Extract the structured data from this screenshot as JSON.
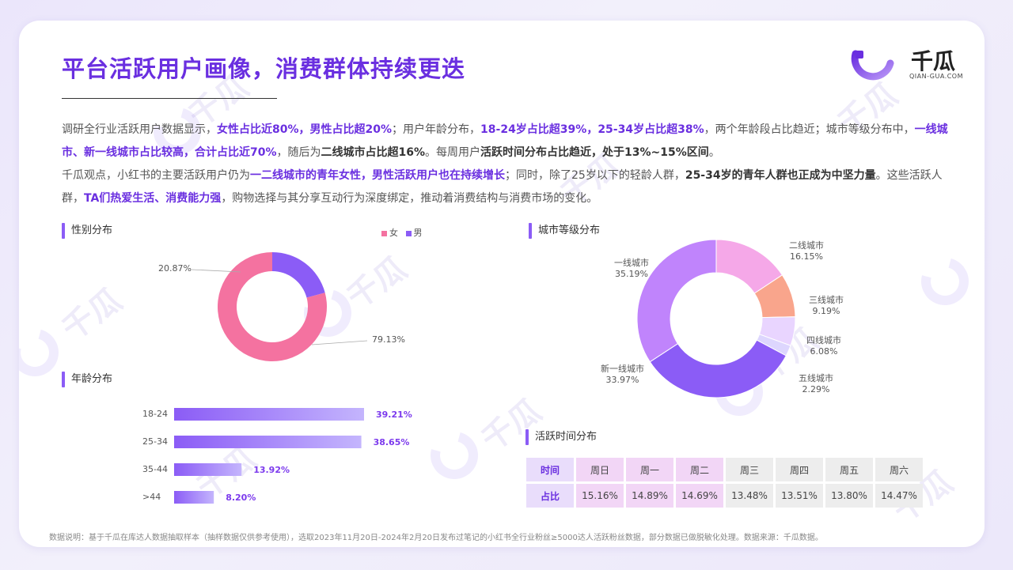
{
  "title": "平台活跃用户画像，消费群体持续更迭",
  "logo": {
    "name": "千瓜",
    "sub": "QIAN-GUA.COM"
  },
  "watermark": "千瓜",
  "paragraph": {
    "p1": [
      {
        "t": "调研全行业活跃用户数据显示，",
        "s": "n"
      },
      {
        "t": "女性占比近80%，男性占比超20%",
        "s": "b"
      },
      {
        "t": "；用户年龄分布，",
        "s": "n"
      },
      {
        "t": "18-24岁占比超39%，25-34岁占比超38%",
        "s": "b"
      },
      {
        "t": "，两个年龄段占比趋近；城市等级分布中，",
        "s": "n"
      },
      {
        "t": "一线城市、新一线城市占比较高，合计占比近70%",
        "s": "b"
      },
      {
        "t": "，随后为",
        "s": "n"
      },
      {
        "t": "二线城市占比超16%",
        "s": "h"
      },
      {
        "t": "。每周用户",
        "s": "n"
      },
      {
        "t": "活跃时间分布占比趋近，处于13%~15%区间",
        "s": "h"
      },
      {
        "t": "。",
        "s": "n"
      }
    ],
    "p2": [
      {
        "t": "千瓜观点，小红书的主要活跃用户仍为",
        "s": "n"
      },
      {
        "t": "一二线城市的青年女性，男性活跃用户也在持续增长",
        "s": "b"
      },
      {
        "t": "；同时，除了25岁以下的轻龄人群，",
        "s": "n"
      },
      {
        "t": "25-34岁的青年人群也正成为中坚力量",
        "s": "h"
      },
      {
        "t": "。这些活跃人群，",
        "s": "n"
      },
      {
        "t": "TA们热爱生活、消费能力强",
        "s": "b"
      },
      {
        "t": "，购物选择与其分享互动行为深度绑定，推动着消费结构与消费市场的变化。",
        "s": "n"
      }
    ]
  },
  "sections": {
    "gender": "性别分布",
    "age": "年龄分布",
    "city": "城市等级分布",
    "active": "活跃时间分布"
  },
  "colors": {
    "female": "#f472a0",
    "male": "#8b5cf6",
    "accent": "#6a2fe0"
  },
  "chart_data": [
    {
      "type": "pie",
      "id": "gender",
      "title": "性别分布",
      "legend": [
        "女",
        "男"
      ],
      "legend_position": "top-right",
      "slices": [
        {
          "name": "女",
          "value": 79.13,
          "label": "79.13%",
          "color": "#f472a0"
        },
        {
          "name": "男",
          "value": 20.87,
          "label": "20.87%",
          "color": "#8b5cf6"
        }
      ]
    },
    {
      "type": "pie",
      "id": "city",
      "title": "城市等级分布",
      "slices": [
        {
          "name": "一线城市",
          "value": 35.19,
          "label": "35.19%",
          "color": "#c084fc"
        },
        {
          "name": "二线城市",
          "value": 16.15,
          "label": "16.15%",
          "color": "#f5a8e8"
        },
        {
          "name": "三线城市",
          "value": 9.19,
          "label": "9.19%",
          "color": "#f9a58c"
        },
        {
          "name": "四线城市",
          "value": 6.08,
          "label": "6.08%",
          "color": "#e9d5ff"
        },
        {
          "name": "五线城市",
          "value": 2.29,
          "label": "2.29%",
          "color": "#ddd6fe"
        },
        {
          "name": "新一线城市",
          "value": 33.97,
          "label": "33.97%",
          "color": "#8b5cf6"
        }
      ]
    },
    {
      "type": "bar",
      "id": "age",
      "title": "年龄分布",
      "orientation": "horizontal",
      "categories": [
        "18-24",
        "25-34",
        "35-44",
        ">44"
      ],
      "values": [
        39.21,
        38.65,
        13.92,
        8.2
      ],
      "labels": [
        "39.21%",
        "38.65%",
        "13.92%",
        "8.20%"
      ]
    },
    {
      "type": "table",
      "id": "active",
      "title": "活跃时间分布",
      "header": [
        "时间",
        "周日",
        "周一",
        "周二",
        "周三",
        "周四",
        "周五",
        "周六"
      ],
      "row": [
        "占比",
        "15.16%",
        "14.89%",
        "14.69%",
        "13.48%",
        "13.51%",
        "13.80%",
        "14.47%"
      ]
    }
  ],
  "footer": "数据说明：基于千瓜在库达人数据抽取样本（抽样数据仅供参考使用），选取2023年11月20日-2024年2月20日发布过笔记的小红书全行业粉丝≥5000达人活跃粉丝数据，部分数据已做脱敏化处理。数据来源：千瓜数据。"
}
